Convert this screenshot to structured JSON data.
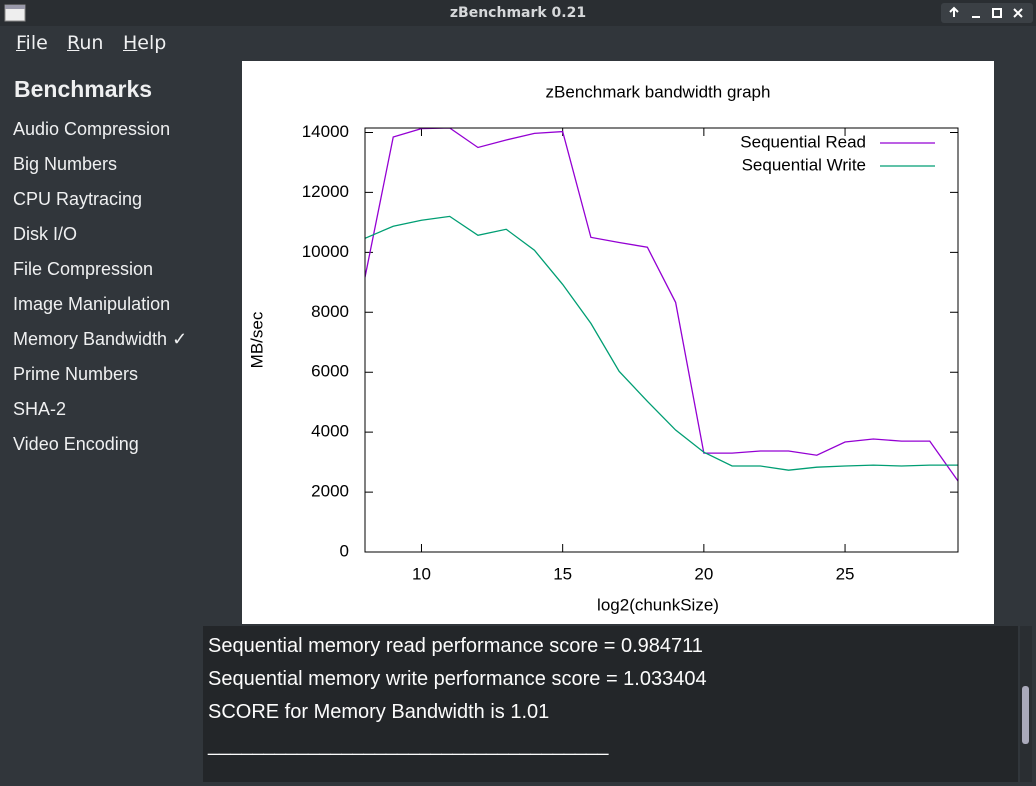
{
  "window": {
    "title": "zBenchmark 0.21"
  },
  "menu": [
    "File",
    "Run",
    "Help"
  ],
  "sidebar": {
    "heading": "Benchmarks",
    "items": [
      "Audio Compression",
      "Big Numbers",
      "CPU Raytracing",
      "Disk I/O",
      "File Compression",
      "Image Manipulation",
      "Memory Bandwidth ✓",
      "Prime Numbers",
      "SHA-2",
      "Video Encoding"
    ]
  },
  "chart_data": {
    "type": "line",
    "title": "zBenchmark bandwidth graph",
    "x_label": "log2(chunkSize)",
    "y_label": "MB/sec",
    "x": [
      8,
      9,
      10,
      11,
      12,
      13,
      14,
      15,
      16,
      17,
      18,
      19,
      20,
      21,
      22,
      23,
      24,
      25,
      26,
      27,
      28,
      29
    ],
    "series": [
      {
        "name": "Sequential Read",
        "color": "#9400d3",
        "values": [
          9170,
          13850,
          14130,
          14150,
          13500,
          13750,
          13970,
          14030,
          10500,
          10330,
          10170,
          8330,
          3300,
          3300,
          3370,
          3370,
          3230,
          3670,
          3770,
          3700,
          3700,
          2370
        ]
      },
      {
        "name": "Sequential Write",
        "color": "#009e73",
        "values": [
          10470,
          10870,
          11070,
          11200,
          10570,
          10770,
          10070,
          8930,
          7630,
          6030,
          5030,
          4070,
          3330,
          2870,
          2870,
          2730,
          2830,
          2870,
          2900,
          2870,
          2900,
          2900
        ]
      }
    ],
    "xlim": [
      8,
      29
    ],
    "ylim": [
      0,
      14150
    ],
    "xticks": [
      10,
      15,
      20,
      25
    ],
    "yticks": [
      0,
      2000,
      4000,
      6000,
      8000,
      10000,
      12000,
      14000
    ],
    "legend": "top-right"
  },
  "console": {
    "lines": [
      "Sequential memory read performance score = 0.984711",
      "Sequential memory write performance score = 1.033404",
      "SCORE for Memory Bandwidth is 1.01",
      "____________________________________"
    ]
  }
}
